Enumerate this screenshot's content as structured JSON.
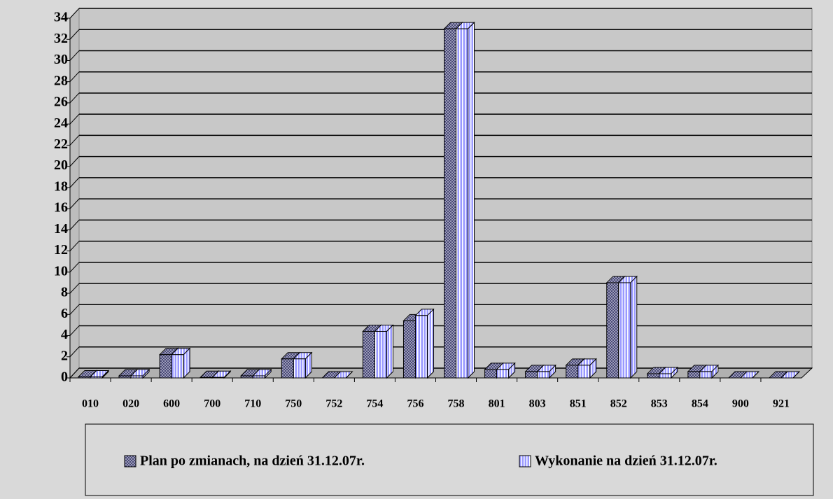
{
  "chart_data": {
    "type": "bar3d",
    "categories": [
      "010",
      "020",
      "600",
      "700",
      "710",
      "750",
      "752",
      "754",
      "756",
      "758",
      "801",
      "803",
      "851",
      "852",
      "853",
      "854",
      "900",
      "921"
    ],
    "series": [
      {
        "name": "Plan po zmianach, na dzień 31.12.07r.",
        "color": "#333366",
        "values": [
          0.1,
          0.2,
          2.2,
          0.05,
          0.2,
          1.8,
          0,
          4.4,
          5.4,
          33,
          0.8,
          0.6,
          1.2,
          9,
          0.4,
          0.6,
          0,
          0
        ]
      },
      {
        "name": "Wykonanie na dzień 31.12.07r.",
        "color": "#9999ff",
        "values": [
          0.1,
          0.2,
          2.2,
          0.05,
          0.2,
          1.8,
          0,
          4.4,
          5.9,
          33,
          0.8,
          0.6,
          1.2,
          9,
          0.4,
          0.6,
          0,
          0
        ]
      }
    ],
    "ylim": [
      0,
      34
    ],
    "yticks": [
      0,
      2,
      4,
      6,
      8,
      10,
      12,
      14,
      16,
      18,
      20,
      22,
      24,
      26,
      28,
      30,
      32,
      34
    ],
    "grid": true
  }
}
